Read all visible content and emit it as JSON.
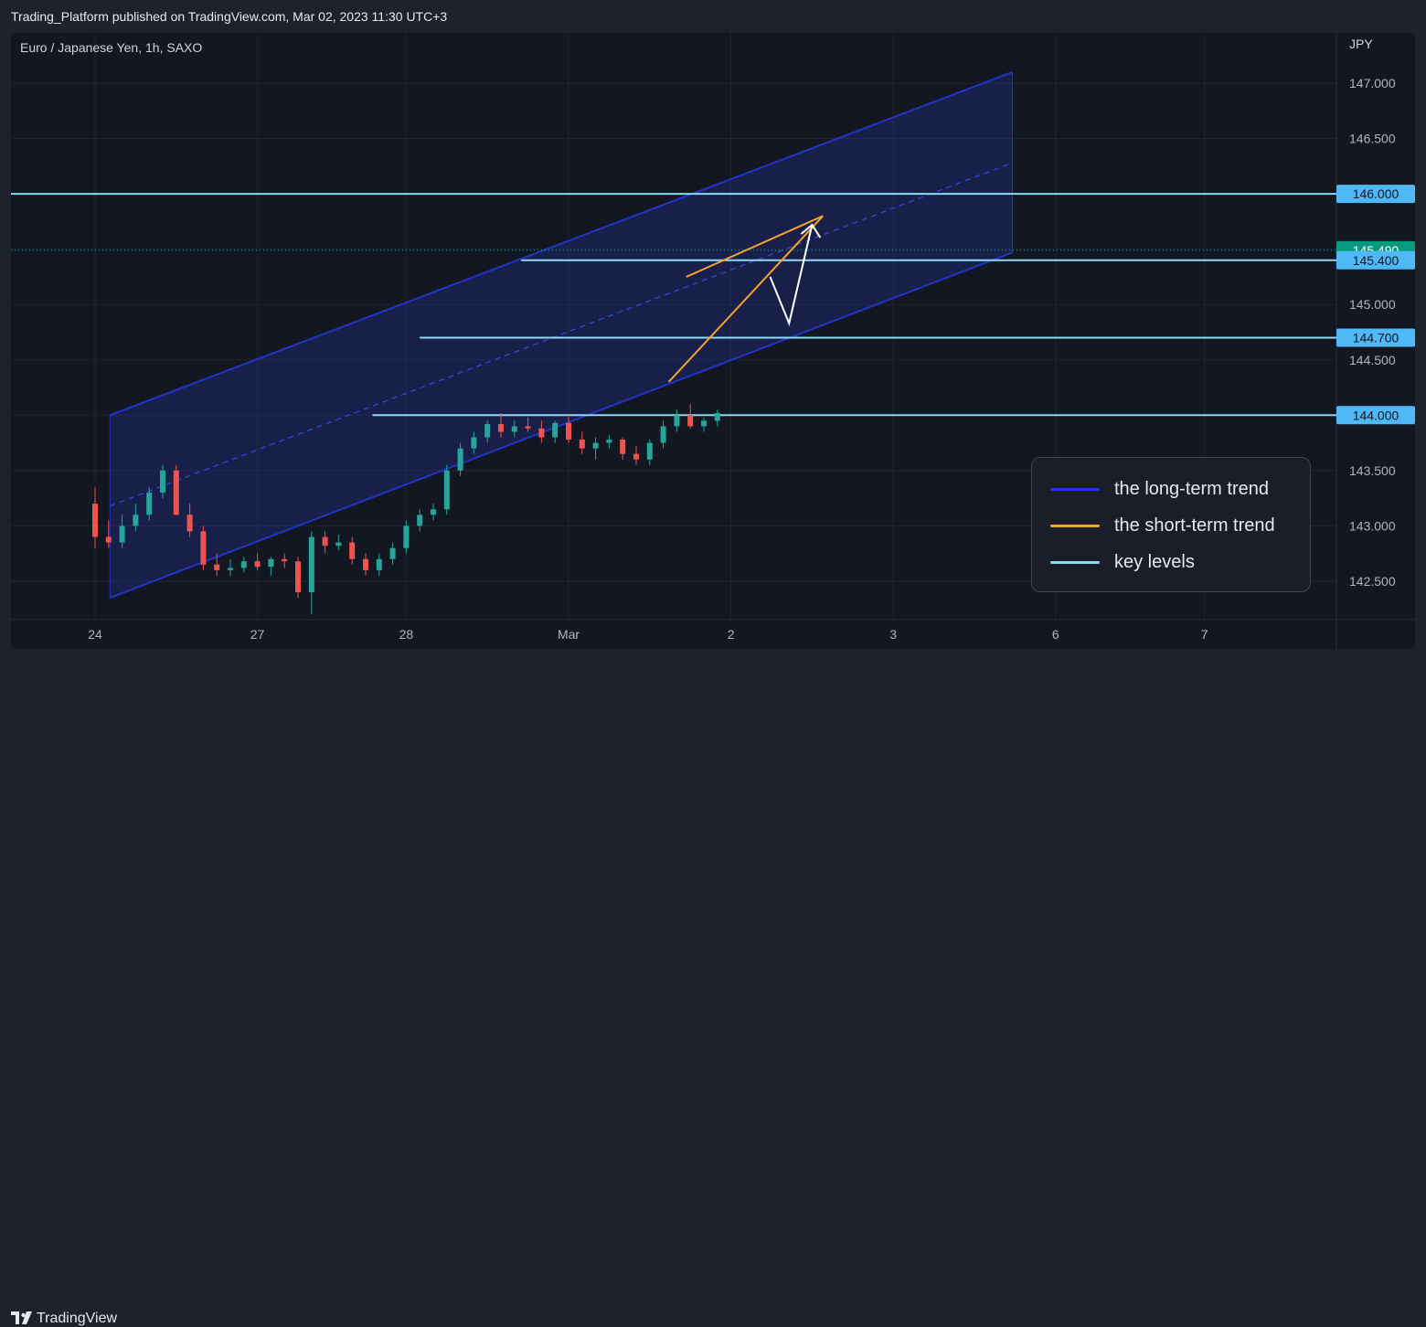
{
  "header": {
    "published": "Trading_Platform published on TradingView.com, Mar 02, 2023 11:30 UTC+3"
  },
  "footer": {
    "brand": "TradingView"
  },
  "legend": {
    "items": [
      {
        "label": "the long-term trend",
        "color": "#1e36e8"
      },
      {
        "label": "the short-term trend",
        "color": "#f7a22c"
      },
      {
        "label": "key levels",
        "color": "#8fd8f4"
      }
    ]
  },
  "chart_data": {
    "type": "candlestick",
    "title": "Euro / Japanese Yen, 1h, SAXO",
    "currency": "JPY",
    "x_ticks": [
      {
        "label": "24",
        "x": 0
      },
      {
        "label": "27",
        "x": 12
      },
      {
        "label": "28",
        "x": 23
      },
      {
        "label": "Mar",
        "x": 35
      },
      {
        "label": "2",
        "x": 47
      },
      {
        "label": "3",
        "x": 59
      },
      {
        "label": "6",
        "x": 71
      },
      {
        "label": "7",
        "x": 82
      }
    ],
    "y_ticks": [
      142.5,
      143.0,
      143.5,
      144.0,
      144.5,
      145.0,
      145.5,
      146.0,
      146.5,
      147.0
    ],
    "ylim": [
      142.0,
      147.4
    ],
    "xlim": [
      -6,
      96
    ],
    "price_labels": [
      {
        "value": 146.0,
        "text": "146.000",
        "kind": "level"
      },
      {
        "value": 145.49,
        "text": "145.490",
        "kind": "last"
      },
      {
        "value": 145.4,
        "text": "145.400",
        "kind": "level"
      },
      {
        "value": 144.7,
        "text": "144.700",
        "kind": "level"
      },
      {
        "value": 144.0,
        "text": "144.000",
        "kind": "level"
      }
    ],
    "last_price": 145.49,
    "key_levels": [
      {
        "value": 146.0,
        "from": -6,
        "to": 96
      },
      {
        "value": 145.4,
        "from": 31.5,
        "to": 96
      },
      {
        "value": 144.7,
        "from": 24,
        "to": 96
      },
      {
        "value": 144.0,
        "from": 20.5,
        "to": 96
      }
    ],
    "long_term_channel": {
      "x_start": 1.1,
      "x_end": 67.8,
      "upper": [
        144.0,
        147.1
      ],
      "lower": [
        142.35,
        145.47
      ],
      "mid": [
        143.18,
        146.28
      ]
    },
    "short_term_wedge": [
      {
        "x1": 43.7,
        "y1": 145.25,
        "x2": 53.8,
        "y2": 145.8
      },
      {
        "x1": 42.4,
        "y1": 144.3,
        "x2": 53.8,
        "y2": 145.8
      }
    ],
    "projection": [
      {
        "x": 49.9,
        "y": 145.25
      },
      {
        "x": 51.3,
        "y": 144.83
      },
      {
        "x": 53.0,
        "y": 145.72
      }
    ],
    "candles": [
      [
        143.2,
        143.35,
        142.8,
        142.9
      ],
      [
        142.9,
        143.05,
        142.8,
        142.85
      ],
      [
        142.85,
        143.1,
        142.8,
        143.0
      ],
      [
        143.0,
        143.2,
        142.95,
        143.1
      ],
      [
        143.1,
        143.35,
        143.05,
        143.3
      ],
      [
        143.3,
        143.55,
        143.25,
        143.5
      ],
      [
        143.5,
        143.55,
        143.1,
        143.1
      ],
      [
        143.1,
        143.2,
        142.9,
        142.95
      ],
      [
        142.95,
        143.0,
        142.6,
        142.65
      ],
      [
        142.65,
        142.75,
        142.55,
        142.6
      ],
      [
        142.6,
        142.7,
        142.55,
        142.62
      ],
      [
        142.62,
        142.72,
        142.58,
        142.68
      ],
      [
        142.68,
        142.75,
        142.6,
        142.63
      ],
      [
        142.63,
        142.72,
        142.55,
        142.7
      ],
      [
        142.7,
        142.75,
        142.62,
        142.68
      ],
      [
        142.68,
        142.72,
        142.35,
        142.4
      ],
      [
        142.4,
        142.95,
        142.2,
        142.9
      ],
      [
        142.9,
        142.95,
        142.75,
        142.82
      ],
      [
        142.82,
        142.92,
        142.78,
        142.85
      ],
      [
        142.85,
        142.9,
        142.65,
        142.7
      ],
      [
        142.7,
        142.75,
        142.55,
        142.6
      ],
      [
        142.6,
        142.75,
        142.55,
        142.7
      ],
      [
        142.7,
        142.85,
        142.65,
        142.8
      ],
      [
        142.8,
        143.05,
        142.75,
        143.0
      ],
      [
        143.0,
        143.15,
        142.95,
        143.1
      ],
      [
        143.1,
        143.2,
        143.05,
        143.15
      ],
      [
        143.15,
        143.55,
        143.1,
        143.5
      ],
      [
        143.5,
        143.75,
        143.45,
        143.7
      ],
      [
        143.7,
        143.85,
        143.65,
        143.8
      ],
      [
        143.8,
        143.95,
        143.75,
        143.92
      ],
      [
        143.92,
        144.02,
        143.8,
        143.85
      ],
      [
        143.85,
        143.95,
        143.8,
        143.9
      ],
      [
        143.9,
        143.98,
        143.85,
        143.88
      ],
      [
        143.88,
        143.95,
        143.75,
        143.8
      ],
      [
        143.8,
        143.95,
        143.75,
        143.93
      ],
      [
        143.93,
        144.0,
        143.75,
        143.78
      ],
      [
        143.78,
        143.85,
        143.65,
        143.7
      ],
      [
        143.7,
        143.8,
        143.6,
        143.75
      ],
      [
        143.75,
        143.82,
        143.7,
        143.78
      ],
      [
        143.78,
        143.8,
        143.6,
        143.65
      ],
      [
        143.65,
        143.72,
        143.55,
        143.6
      ],
      [
        143.6,
        143.78,
        143.55,
        143.75
      ],
      [
        143.75,
        143.95,
        143.7,
        143.9
      ],
      [
        143.9,
        144.05,
        143.85,
        144.0
      ],
      [
        144.0,
        144.1,
        143.88,
        143.9
      ],
      [
        143.9,
        143.98,
        143.85,
        143.95
      ],
      [
        143.95,
        144.05,
        143.9,
        144.02
      ]
    ]
  }
}
